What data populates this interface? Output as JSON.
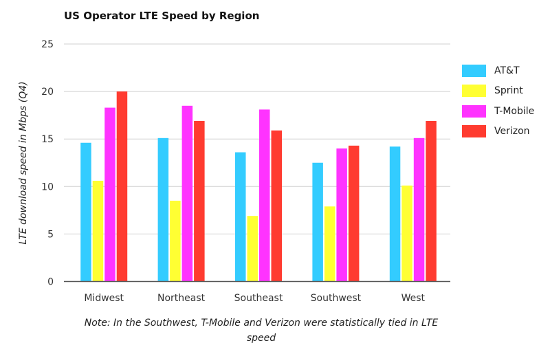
{
  "chart_data": {
    "type": "bar",
    "title": "US Operator LTE Speed by Region",
    "ylabel": "LTE download speed in Mbps (Q4)",
    "xlabel": "",
    "ylim": [
      0,
      25
    ],
    "yticks": [
      0,
      5,
      10,
      15,
      20,
      25
    ],
    "grid": true,
    "legend": "right",
    "categories": [
      "Midwest",
      "Northeast",
      "Southeast",
      "Southwest",
      "West"
    ],
    "series": [
      {
        "name": "AT&T",
        "color": "#33ccff",
        "values": [
          14.6,
          15.1,
          13.6,
          12.5,
          14.2
        ]
      },
      {
        "name": "Sprint",
        "color": "#ffff33",
        "values": [
          10.6,
          8.5,
          6.9,
          7.9,
          10.1
        ]
      },
      {
        "name": "T-Mobile",
        "color": "#ff33ff",
        "values": [
          18.3,
          18.5,
          18.1,
          14.0,
          15.1
        ]
      },
      {
        "name": "Verizon",
        "color": "#ff3b30",
        "values": [
          20.0,
          16.9,
          15.9,
          14.3,
          16.9
        ]
      }
    ],
    "note": "Note: In the Southwest, T-Mobile and Verizon were statistically tied in LTE speed"
  }
}
